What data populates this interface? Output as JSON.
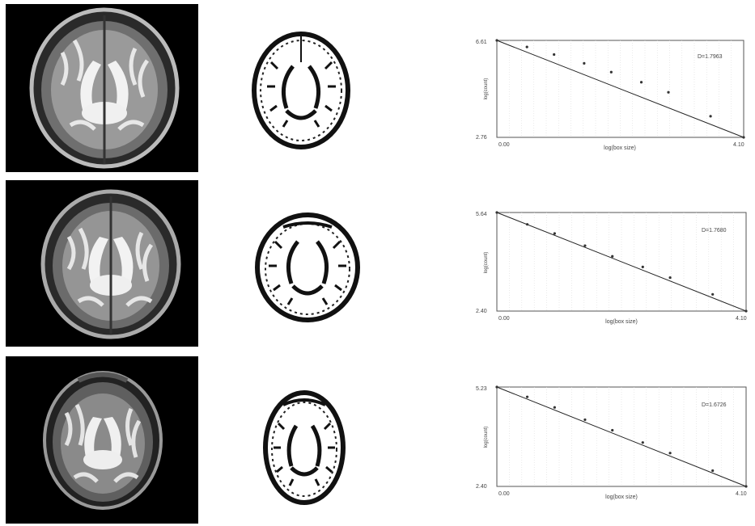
{
  "chart_data": [
    {
      "type": "line",
      "annotation": "D=1.7963",
      "xlabel": "log(box size)",
      "ylabel": "log(count)",
      "xlim": [
        0.0,
        4.1
      ],
      "xtick_labels": [
        "0.00",
        "4.10"
      ],
      "ytick_labels": [
        "6.61",
        "2.76"
      ],
      "ylim": [
        2.76,
        6.61
      ],
      "grid": true,
      "x": [
        0.0,
        0.5,
        0.95,
        1.45,
        1.9,
        2.4,
        2.85,
        3.55,
        4.1
      ],
      "y": [
        6.61,
        6.35,
        6.05,
        5.7,
        5.35,
        4.95,
        4.55,
        3.6,
        2.76
      ]
    },
    {
      "type": "line",
      "annotation": "D=1.7680",
      "xlabel": "log(box size)",
      "ylabel": "log(count)",
      "xlim": [
        0.0,
        4.1
      ],
      "xtick_labels": [
        "0.00",
        "4.10"
      ],
      "ytick_labels": [
        "5.64",
        "2.40"
      ],
      "ylim": [
        2.4,
        5.64
      ],
      "grid": true,
      "x": [
        0.0,
        0.5,
        0.95,
        1.45,
        1.9,
        2.4,
        2.85,
        3.55,
        4.1
      ],
      "y": [
        5.64,
        5.25,
        4.95,
        4.55,
        4.2,
        3.85,
        3.5,
        2.95,
        2.4
      ]
    },
    {
      "type": "line",
      "annotation": "D=1.6726",
      "xlabel": "log(box size)",
      "ylabel": "log(count)",
      "xlim": [
        0.0,
        4.1
      ],
      "xtick_labels": [
        "0.00",
        "4.10"
      ],
      "ytick_labels": [
        "5.23",
        "2.40"
      ],
      "ylim": [
        2.4,
        5.23
      ],
      "grid": true,
      "x": [
        0.0,
        0.5,
        0.95,
        1.45,
        1.9,
        2.4,
        2.85,
        3.55,
        4.1
      ],
      "y": [
        5.23,
        4.95,
        4.65,
        4.3,
        4.0,
        3.65,
        3.35,
        2.85,
        2.4
      ]
    }
  ]
}
